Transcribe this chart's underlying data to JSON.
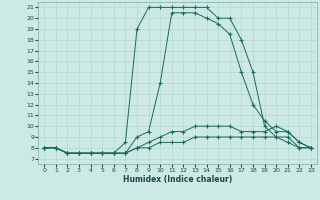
{
  "xlabel": "Humidex (Indice chaleur)",
  "background_color": "#cce9e4",
  "grid_color": "#b0d4cc",
  "line_color": "#1a6b5a",
  "xlim": [
    -0.5,
    23.5
  ],
  "ylim": [
    6.5,
    21.5
  ],
  "xticks": [
    0,
    1,
    2,
    3,
    4,
    5,
    6,
    7,
    8,
    9,
    10,
    11,
    12,
    13,
    14,
    15,
    16,
    17,
    18,
    19,
    20,
    21,
    22,
    23
  ],
  "yticks": [
    7,
    8,
    9,
    10,
    11,
    12,
    13,
    14,
    15,
    16,
    17,
    18,
    19,
    20,
    21
  ],
  "line1_x": [
    0,
    1,
    2,
    3,
    4,
    5,
    6,
    7,
    8,
    9,
    10,
    11,
    12,
    13,
    14,
    15,
    16,
    17,
    18,
    19,
    20,
    21,
    22,
    23
  ],
  "line1_y": [
    8,
    8,
    7.5,
    7.5,
    7.5,
    7.5,
    7.5,
    8.5,
    19,
    21,
    21,
    21,
    21,
    21,
    21,
    20,
    20,
    18,
    15,
    10,
    9,
    9,
    8,
    8
  ],
  "line2_x": [
    0,
    1,
    2,
    3,
    4,
    5,
    6,
    7,
    8,
    9,
    10,
    11,
    12,
    13,
    14,
    15,
    16,
    17,
    18,
    19,
    20,
    21,
    22,
    23
  ],
  "line2_y": [
    8,
    8,
    7.5,
    7.5,
    7.5,
    7.5,
    7.5,
    7.5,
    9,
    9.5,
    14,
    20.5,
    20.5,
    20.5,
    20,
    19.5,
    18.5,
    15,
    12,
    10.5,
    9.5,
    9.5,
    8.5,
    8
  ],
  "line3_x": [
    0,
    1,
    2,
    3,
    4,
    5,
    6,
    7,
    8,
    9,
    10,
    11,
    12,
    13,
    14,
    15,
    16,
    17,
    18,
    19,
    20,
    21,
    22,
    23
  ],
  "line3_y": [
    8,
    8,
    7.5,
    7.5,
    7.5,
    7.5,
    7.5,
    7.5,
    8,
    8.5,
    9,
    9.5,
    9.5,
    10,
    10,
    10,
    10,
    9.5,
    9.5,
    9.5,
    10,
    9.5,
    8.5,
    8
  ],
  "line4_x": [
    0,
    1,
    2,
    3,
    4,
    5,
    6,
    7,
    8,
    9,
    10,
    11,
    12,
    13,
    14,
    15,
    16,
    17,
    18,
    19,
    20,
    21,
    22,
    23
  ],
  "line4_y": [
    8,
    8,
    7.5,
    7.5,
    7.5,
    7.5,
    7.5,
    7.5,
    8,
    8,
    8.5,
    8.5,
    8.5,
    9,
    9,
    9,
    9,
    9,
    9,
    9,
    9,
    8.5,
    8,
    8
  ]
}
